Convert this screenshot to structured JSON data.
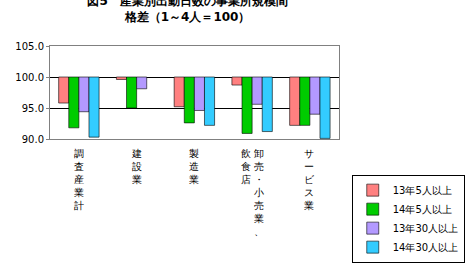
{
  "chart_data": {
    "type": "bar",
    "title": "図5　産業別出勤日数の事業所規模間\n格差（1～4人＝100）",
    "categories": [
      "調査産業計",
      "建設業",
      "製造業",
      "卸売・小売業、飲食店",
      "サービス業"
    ],
    "baseline": 100,
    "series": [
      {
        "name": "13年5人以上",
        "color": "#ff8080",
        "values": [
          95.8,
          99.6,
          95.2,
          98.7,
          92.2
        ]
      },
      {
        "name": "14年5人以上",
        "color": "#00cc00",
        "values": [
          91.8,
          95.0,
          92.6,
          90.9,
          92.2
        ]
      },
      {
        "name": "13年30人以上",
        "color": "#b399ff",
        "values": [
          94.4,
          98.1,
          94.6,
          95.6,
          94.0
        ]
      },
      {
        "name": "14年30人以上",
        "color": "#33ccff",
        "values": [
          90.3,
          null,
          92.2,
          91.2,
          90.1
        ]
      }
    ],
    "ylim": [
      90,
      105
    ],
    "yticks": [
      {
        "value": 90,
        "label": "90.0"
      },
      {
        "value": 95,
        "label": "95.0"
      },
      {
        "value": 100,
        "label": "100.0"
      },
      {
        "value": 105,
        "label": "105.0"
      }
    ],
    "grid": true,
    "legend": "lower right"
  }
}
